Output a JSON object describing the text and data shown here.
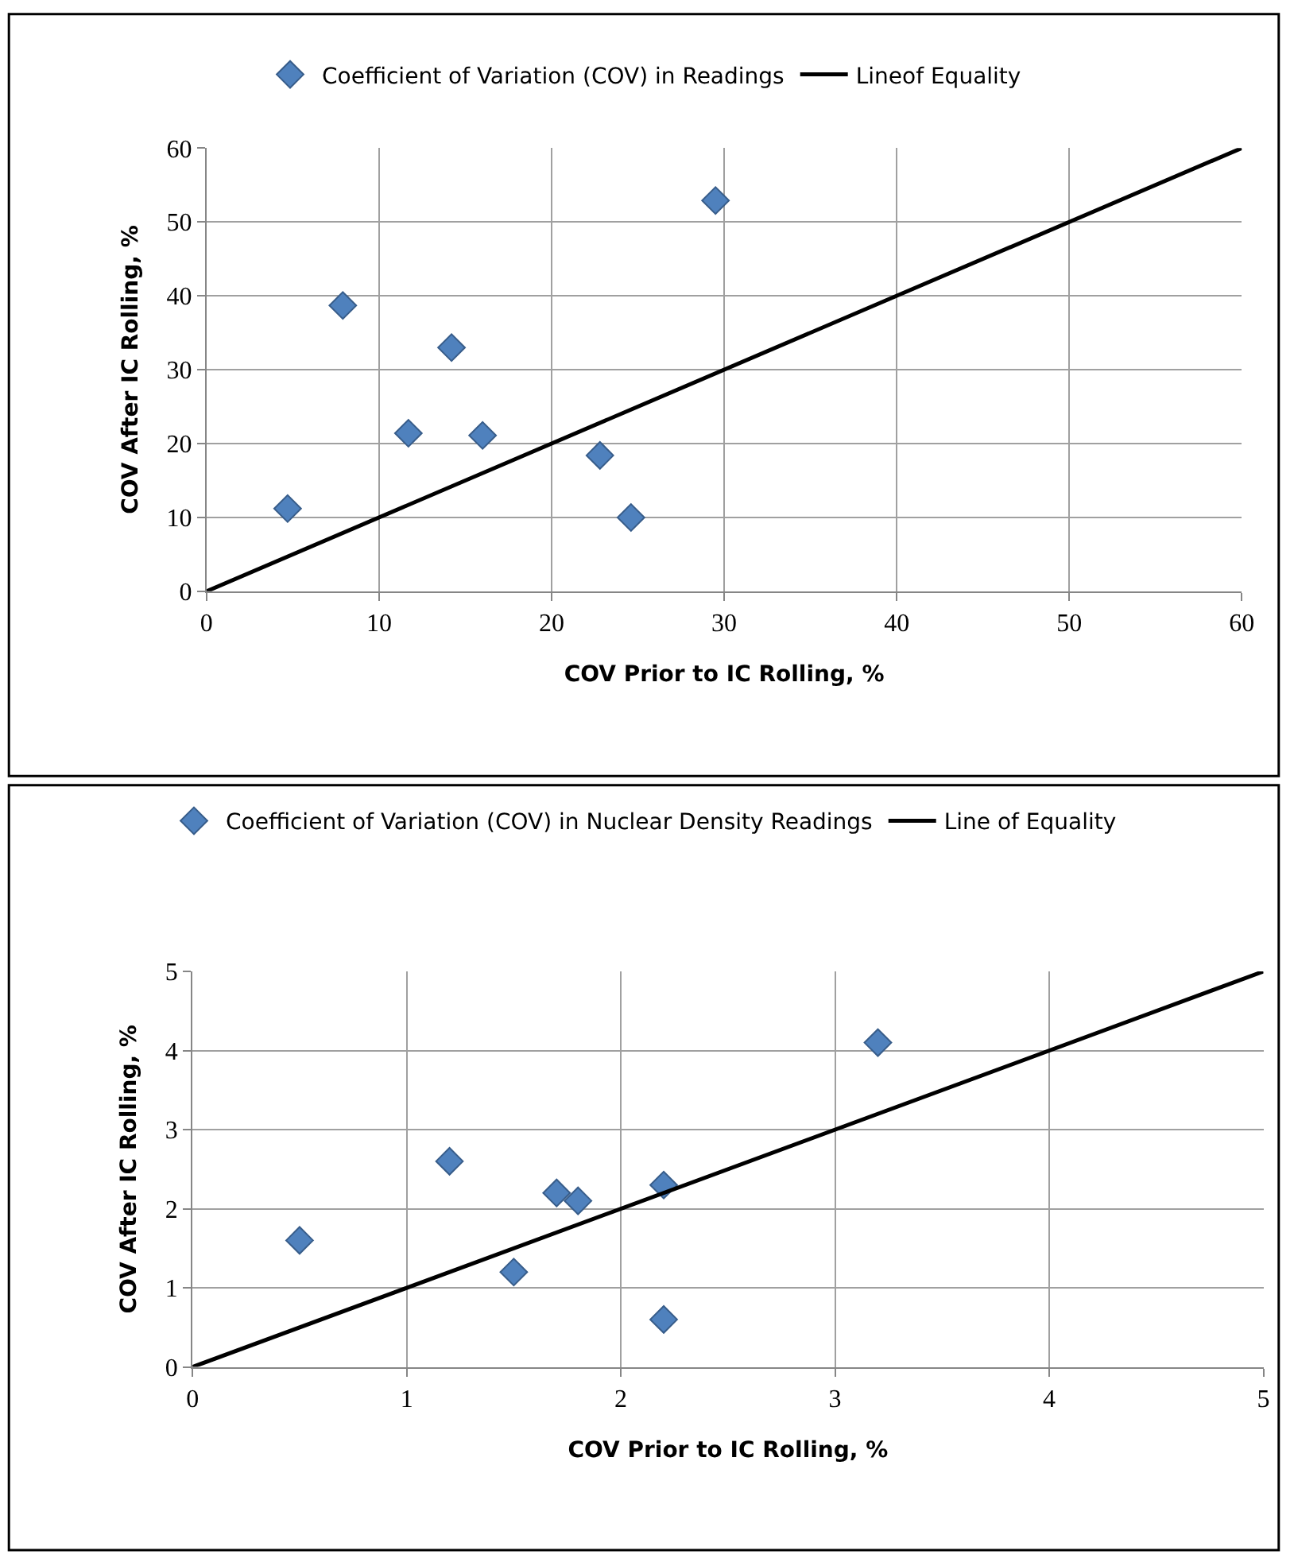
{
  "chart_data": [
    {
      "type": "scatter",
      "xlabel": "COV Prior to IC Rolling, %",
      "ylabel": "COV After IC Rolling, %",
      "xlim": [
        0,
        60
      ],
      "ylim": [
        0,
        60
      ],
      "xticks": [
        0,
        10,
        20,
        30,
        40,
        50,
        60
      ],
      "yticks": [
        0,
        10,
        20,
        30,
        40,
        50,
        60
      ],
      "grid": true,
      "legend": "top",
      "marker": "diamond",
      "series": [
        {
          "name": "Coefficient of Variation (COV) in Readings",
          "color": "#4f81bd",
          "x": [
            4.7,
            7.9,
            11.7,
            14.2,
            16.0,
            22.8,
            24.6,
            29.5
          ],
          "values": [
            11.2,
            38.7,
            21.4,
            33.0,
            21.1,
            18.4,
            10.0,
            52.9
          ]
        },
        {
          "name": "Lineof Equality",
          "type": "line",
          "color": "#000000",
          "marker": "none",
          "line_style": "solid",
          "x": [
            0,
            60
          ],
          "values": [
            0,
            60
          ]
        }
      ]
    },
    {
      "type": "scatter",
      "xlabel": "COV Prior to IC Rolling, %",
      "ylabel": "COV After IC Rolling, %",
      "xlim": [
        0,
        5
      ],
      "ylim": [
        0,
        5
      ],
      "xticks": [
        0,
        1,
        2,
        3,
        4,
        5
      ],
      "yticks": [
        0,
        1,
        2,
        3,
        4,
        5
      ],
      "grid": true,
      "legend": "top",
      "marker": "diamond",
      "series": [
        {
          "name": "Coefficient of Variation (COV) in Nuclear Density Readings",
          "color": "#4f81bd",
          "x": [
            0.5,
            1.2,
            1.5,
            1.7,
            1.8,
            2.2,
            2.2,
            3.2
          ],
          "values": [
            1.6,
            2.6,
            1.2,
            2.2,
            2.1,
            2.3,
            0.6,
            4.1
          ]
        },
        {
          "name": "Line of Equality",
          "type": "line",
          "color": "#000000",
          "marker": "none",
          "line_style": "solid",
          "x": [
            0,
            5
          ],
          "values": [
            0,
            5
          ]
        }
      ]
    }
  ]
}
